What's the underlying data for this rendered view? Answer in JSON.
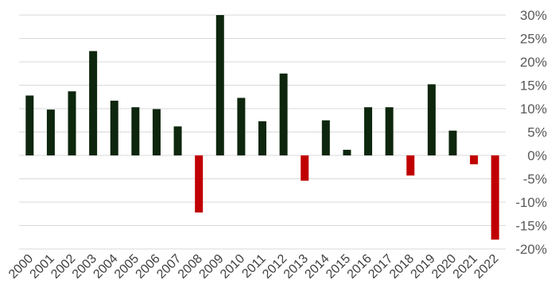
{
  "chart_data": {
    "type": "bar",
    "title": "",
    "xlabel": "",
    "ylabel": "",
    "categories": [
      "2000",
      "2001",
      "2002",
      "2003",
      "2004",
      "2005",
      "2006",
      "2007",
      "2008",
      "2009",
      "2010",
      "2011",
      "2012",
      "2013",
      "2014",
      "2015",
      "2016",
      "2017",
      "2018",
      "2019",
      "2020",
      "2021",
      "2022"
    ],
    "values": [
      12.8,
      9.8,
      13.7,
      22.3,
      11.7,
      10.3,
      9.9,
      6.2,
      -12.2,
      30.0,
      12.3,
      7.3,
      17.5,
      -5.4,
      7.5,
      1.2,
      10.3,
      10.3,
      -4.3,
      15.2,
      5.3,
      -1.9,
      -18.0
    ],
    "ylim": [
      -20,
      30
    ],
    "yticks": [
      30,
      25,
      20,
      15,
      10,
      5,
      0,
      -5,
      -10,
      -15,
      -20
    ],
    "ytick_labels": [
      "30%",
      "25%",
      "20%",
      "15%",
      "10%",
      "5%",
      "0%",
      "-5%",
      "-10%",
      "-15%",
      "-20%"
    ],
    "y_axis_position": "right",
    "grid": true,
    "legend": "none",
    "colors": {
      "positive": "#0d260d",
      "negative": "#c00000",
      "grid": "#d9d9d9"
    }
  }
}
